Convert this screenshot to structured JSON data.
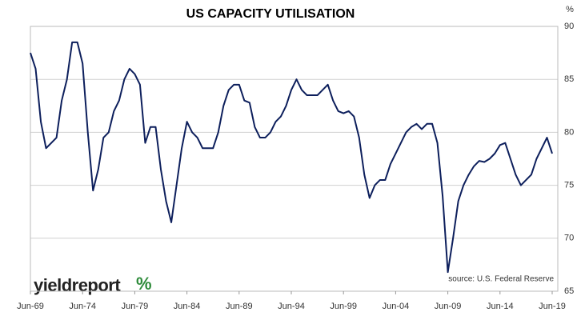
{
  "chart_data": {
    "type": "line",
    "title": "US CAPACITY UTILISATION",
    "unit_label": "%",
    "source": "source: U.S. Federal Reserve",
    "logo": "yieldreport",
    "logo_symbol": "%",
    "x": [
      "Jun-69",
      "Dec-69",
      "Jun-70",
      "Dec-70",
      "Jun-71",
      "Dec-71",
      "Jun-72",
      "Dec-72",
      "Jun-73",
      "Dec-73",
      "Jun-74",
      "Dec-74",
      "Jun-75",
      "Dec-75",
      "Jun-76",
      "Dec-76",
      "Jun-77",
      "Dec-77",
      "Jun-78",
      "Dec-78",
      "Jun-79",
      "Dec-79",
      "Jun-80",
      "Dec-80",
      "Jun-81",
      "Dec-81",
      "Jun-82",
      "Dec-82",
      "Jun-83",
      "Dec-83",
      "Jun-84",
      "Dec-84",
      "Jun-85",
      "Dec-85",
      "Jun-86",
      "Dec-86",
      "Jun-87",
      "Dec-87",
      "Jun-88",
      "Dec-88",
      "Jun-89",
      "Dec-89",
      "Jun-90",
      "Dec-90",
      "Jun-91",
      "Dec-91",
      "Jun-92",
      "Dec-92",
      "Jun-93",
      "Dec-93",
      "Jun-94",
      "Dec-94",
      "Jun-95",
      "Dec-95",
      "Jun-96",
      "Dec-96",
      "Jun-97",
      "Dec-97",
      "Jun-98",
      "Dec-98",
      "Jun-99",
      "Dec-99",
      "Jun-00",
      "Dec-00",
      "Jun-01",
      "Dec-01",
      "Jun-02",
      "Dec-02",
      "Jun-03",
      "Dec-03",
      "Jun-04",
      "Dec-04",
      "Jun-05",
      "Dec-05",
      "Jun-06",
      "Dec-06",
      "Jun-07",
      "Dec-07",
      "Jun-08",
      "Dec-08",
      "Jun-09",
      "Dec-09",
      "Jun-10",
      "Dec-10",
      "Jun-11",
      "Dec-11",
      "Jun-12",
      "Dec-12",
      "Jun-13",
      "Dec-13",
      "Jun-14",
      "Dec-14",
      "Jun-15",
      "Dec-15",
      "Jun-16",
      "Dec-16",
      "Jun-17",
      "Dec-17",
      "Jun-18",
      "Dec-18",
      "Jun-19"
    ],
    "series": [
      {
        "name": "US capacity utilisation",
        "color": "#0d1f5c",
        "values": [
          87.5,
          86,
          81,
          78.5,
          79,
          79.5,
          83,
          85,
          88.5,
          88.5,
          86.5,
          80,
          74.5,
          76.5,
          79.5,
          80,
          82,
          83,
          85,
          86,
          85.5,
          84.5,
          79,
          80.5,
          80.5,
          76.5,
          73.5,
          71.5,
          75,
          78.5,
          81,
          80,
          79.5,
          78.5,
          78.5,
          78.5,
          80,
          82.5,
          84,
          84.5,
          84.5,
          83,
          82.8,
          80.5,
          79.5,
          79.5,
          80,
          81,
          81.5,
          82.5,
          84,
          85,
          84,
          83.5,
          83.5,
          83.5,
          84,
          84.5,
          83,
          82,
          81.8,
          82,
          81.5,
          79.5,
          76,
          73.8,
          75,
          75.5,
          75.5,
          77,
          78,
          79,
          80,
          80.5,
          80.8,
          80.3,
          80.8,
          80.8,
          79,
          74,
          66.8,
          70,
          73.5,
          75,
          76,
          76.8,
          77.3,
          77.2,
          77.5,
          78,
          78.8,
          79,
          77.5,
          76,
          75,
          75.5,
          76,
          77.5,
          78.5,
          79.5,
          78
        ]
      }
    ],
    "xticks": [
      "Jun-69",
      "Jun-74",
      "Jun-79",
      "Jun-84",
      "Jun-89",
      "Jun-94",
      "Jun-99",
      "Jun-04",
      "Jun-09",
      "Jun-14",
      "Jun-19"
    ],
    "ylim": [
      65,
      90
    ],
    "yticks": [
      65,
      70,
      75,
      80,
      85,
      90
    ],
    "grid": true
  }
}
